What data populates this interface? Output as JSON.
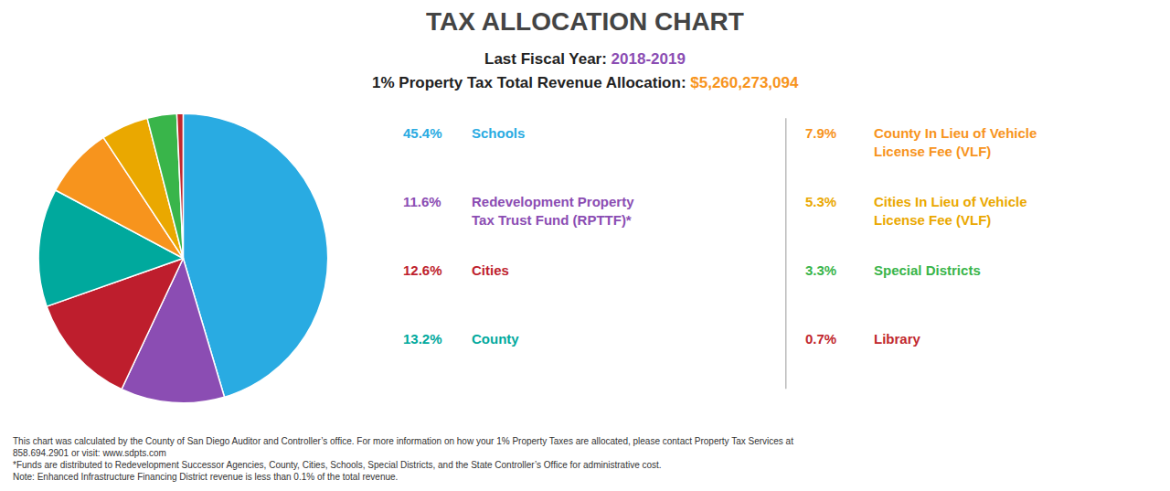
{
  "chart_data": {
    "type": "pie",
    "title": "TAX ALLOCATION CHART",
    "subtitle": [
      [
        {
          "text": "Last Fiscal Year: ",
          "color": "#222222"
        },
        {
          "text": "2018-2019",
          "color": "#8B4DB3"
        }
      ],
      [
        {
          "text": "1% Property Tax Total Revenue Allocation: ",
          "color": "#222222"
        },
        {
          "text": "$5,260,273,094",
          "color": "#F7941D"
        }
      ]
    ],
    "categories": [
      "Schools",
      "Redevelopment Property\nTax Trust Fund (RPTTF)*",
      "Cities",
      "County",
      "County In Lieu of Vehicle\nLicense Fee (VLF)",
      "Cities In Lieu of Vehicle\nLicense Fee (VLF)",
      "Special Districts",
      "Library"
    ],
    "values": [
      45.4,
      11.6,
      12.6,
      13.2,
      7.9,
      5.3,
      3.3,
      0.7
    ],
    "value_labels": [
      "45.4%",
      "11.6%",
      "12.6%",
      "13.2%",
      "7.9%",
      "5.3%",
      "3.3%",
      "0.7%"
    ],
    "colors": [
      "#29ABE2",
      "#8B4DB3",
      "#BE1E2D",
      "#00A99D",
      "#F7941D",
      "#EAA800",
      "#39B54A",
      "#C1272D"
    ],
    "annotations": [
      "This chart was calculated by the County of San Diego Auditor and Controller’s office. For more information on how your 1% Property Taxes are allocated, please contact Property Tax Services at\n858.694.2901 or visit: www.sdpts.com",
      "*Funds are distributed to Redevelopment Successor Agencies, County, Cities, Schools, Special Districts, and the State Controller’s Office for administrative cost.",
      "Note: Enhanced Infrastructure Financing District revenue is less than 0.1% of the total revenue."
    ]
  }
}
